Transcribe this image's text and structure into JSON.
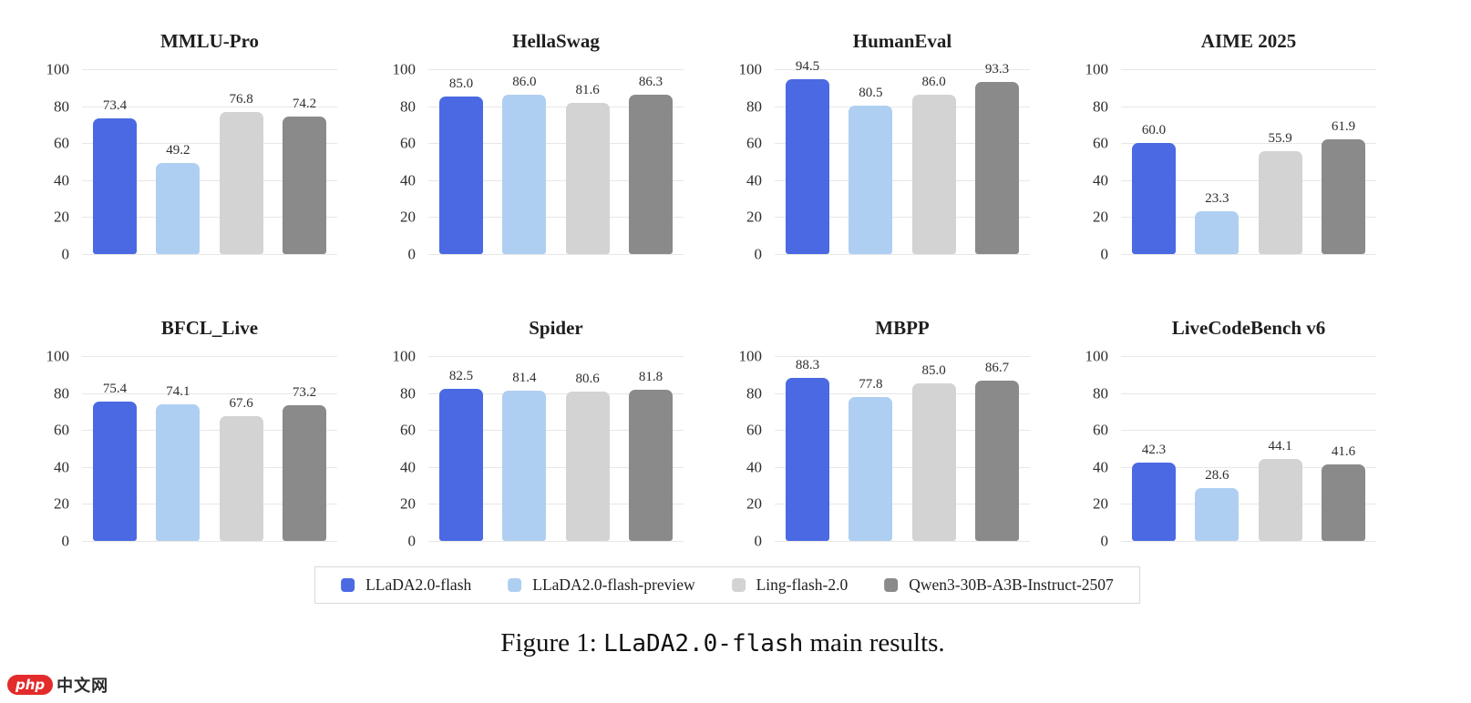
{
  "page": {
    "background": "#ffffff"
  },
  "chart_data": {
    "type": "bar",
    "layout": "2x4 grid of subplots, shared style",
    "ylim": [
      0,
      100
    ],
    "yticks": [
      100,
      80,
      60,
      40,
      20,
      0
    ],
    "grid": true,
    "legend_position": "bottom",
    "series_names": [
      "LLaDA2.0-flash",
      "LLaDA2.0-flash-preview",
      "Ling-flash-2.0",
      "Qwen3-30B-A3B-Instruct-2507"
    ],
    "series_colors": [
      "#4a69e2",
      "#afcff2",
      "#d3d3d3",
      "#8a8a8a"
    ],
    "subplots": [
      {
        "title": "MMLU-Pro",
        "values": [
          73.4,
          49.2,
          76.8,
          74.2
        ]
      },
      {
        "title": "HellaSwag",
        "values": [
          85.0,
          86.0,
          81.6,
          86.3
        ]
      },
      {
        "title": "HumanEval",
        "values": [
          94.5,
          80.5,
          86.0,
          93.3
        ]
      },
      {
        "title": "AIME 2025",
        "values": [
          60.0,
          23.3,
          55.9,
          61.9
        ]
      },
      {
        "title": "BFCL_Live",
        "values": [
          75.4,
          74.1,
          67.6,
          73.2
        ]
      },
      {
        "title": "Spider",
        "values": [
          82.5,
          81.4,
          80.6,
          81.8
        ]
      },
      {
        "title": "MBPP",
        "values": [
          88.3,
          77.8,
          85.0,
          86.7
        ]
      },
      {
        "title": "LiveCodeBench v6",
        "values": [
          42.3,
          28.6,
          44.1,
          41.6
        ]
      }
    ]
  },
  "caption": {
    "prefix": "Figure 1: ",
    "code": "LLaDA2.0-flash",
    "suffix": " main results."
  },
  "watermark": {
    "badge": "php",
    "text": "中文网"
  },
  "colors": {
    "gridline": "#e7e7e7",
    "tick_text": "#2d2d2d",
    "title_text": "#1f1f1f",
    "legend_border": "#d9d9d9",
    "watermark_red": "#e32b2b"
  }
}
